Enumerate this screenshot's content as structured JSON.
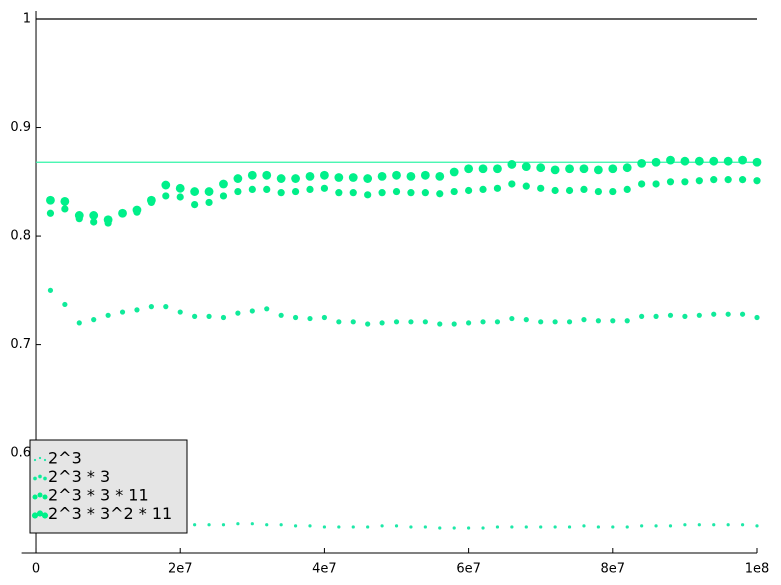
{
  "chart_data": {
    "type": "scatter",
    "x": [
      2000000,
      4000000,
      6000000,
      8000000,
      10000000,
      12000000,
      14000000,
      16000000,
      18000000,
      20000000,
      22000000,
      24000000,
      26000000,
      28000000,
      30000000,
      32000000,
      34000000,
      36000000,
      38000000,
      40000000,
      42000000,
      44000000,
      46000000,
      48000000,
      50000000,
      52000000,
      54000000,
      56000000,
      58000000,
      60000000,
      62000000,
      64000000,
      66000000,
      68000000,
      70000000,
      72000000,
      74000000,
      76000000,
      78000000,
      80000000,
      82000000,
      84000000,
      86000000,
      88000000,
      90000000,
      92000000,
      94000000,
      96000000,
      98000000,
      100000000
    ],
    "series": [
      {
        "name": "2^3",
        "color": "#1ee8a8",
        "size": 1.6,
        "values": [
          0.533,
          0.533,
          0.533,
          0.533,
          0.533,
          0.533,
          0.533,
          0.533,
          0.533,
          0.533,
          0.534,
          0.534,
          0.534,
          0.535,
          0.535,
          0.534,
          0.534,
          0.533,
          0.533,
          0.532,
          0.532,
          0.532,
          0.532,
          0.533,
          0.533,
          0.532,
          0.532,
          0.531,
          0.531,
          0.531,
          0.531,
          0.532,
          0.532,
          0.532,
          0.532,
          0.532,
          0.532,
          0.533,
          0.532,
          0.532,
          0.532,
          0.533,
          0.533,
          0.533,
          0.534,
          0.534,
          0.534,
          0.534,
          0.534,
          0.533
        ]
      },
      {
        "name": "2^3 * 3",
        "color": "#10ea9a",
        "size": 2.6,
        "values": [
          0.75,
          0.737,
          0.72,
          0.723,
          0.727,
          0.73,
          0.732,
          0.735,
          0.735,
          0.73,
          0.726,
          0.726,
          0.725,
          0.729,
          0.731,
          0.733,
          0.727,
          0.725,
          0.724,
          0.725,
          0.721,
          0.721,
          0.719,
          0.72,
          0.721,
          0.721,
          0.721,
          0.719,
          0.719,
          0.72,
          0.721,
          0.721,
          0.724,
          0.723,
          0.721,
          0.721,
          0.721,
          0.723,
          0.722,
          0.722,
          0.722,
          0.726,
          0.726,
          0.727,
          0.726,
          0.727,
          0.728,
          0.728,
          0.728,
          0.725
        ]
      },
      {
        "name": "2^3 * 3 * 11",
        "color": "#00ee88",
        "size": 3.6,
        "values": [
          0.821,
          0.825,
          0.816,
          0.813,
          0.812,
          0.821,
          0.822,
          0.831,
          0.837,
          0.836,
          0.829,
          0.831,
          0.837,
          0.841,
          0.843,
          0.843,
          0.84,
          0.841,
          0.843,
          0.844,
          0.84,
          0.84,
          0.838,
          0.84,
          0.841,
          0.84,
          0.84,
          0.839,
          0.841,
          0.842,
          0.843,
          0.844,
          0.848,
          0.846,
          0.844,
          0.842,
          0.842,
          0.843,
          0.841,
          0.841,
          0.843,
          0.848,
          0.848,
          0.85,
          0.85,
          0.851,
          0.852,
          0.852,
          0.852,
          0.851
        ]
      },
      {
        "name": "2^3 * 3^2 * 11",
        "color": "#00f08a",
        "size": 4.4,
        "values": [
          0.833,
          0.832,
          0.819,
          0.819,
          0.815,
          0.821,
          0.824,
          0.833,
          0.847,
          0.844,
          0.841,
          0.841,
          0.848,
          0.853,
          0.856,
          0.856,
          0.853,
          0.853,
          0.855,
          0.856,
          0.854,
          0.854,
          0.853,
          0.855,
          0.856,
          0.855,
          0.856,
          0.855,
          0.859,
          0.862,
          0.862,
          0.862,
          0.866,
          0.864,
          0.863,
          0.861,
          0.862,
          0.862,
          0.861,
          0.862,
          0.863,
          0.867,
          0.868,
          0.87,
          0.869,
          0.869,
          0.869,
          0.869,
          0.87,
          0.868
        ]
      }
    ],
    "hlines": [
      {
        "y": 1,
        "color": "#000000"
      },
      {
        "y": 0.868,
        "color": "#33f5a8"
      }
    ],
    "xlim": [
      -2000000,
      100000000
    ],
    "ylim": [
      0.508,
      1
    ],
    "xticks": [
      0,
      {
        "value": 20000000,
        "label": "2e7"
      },
      {
        "value": 40000000,
        "label": "4e7"
      },
      {
        "value": 60000000,
        "label": "6e7"
      },
      {
        "value": 80000000,
        "label": "8e7"
      },
      {
        "value": 100000000,
        "label": "1e8"
      }
    ],
    "yticks": [
      0.6,
      0.7,
      0.8,
      0.9,
      1
    ],
    "legend": "lower left"
  }
}
